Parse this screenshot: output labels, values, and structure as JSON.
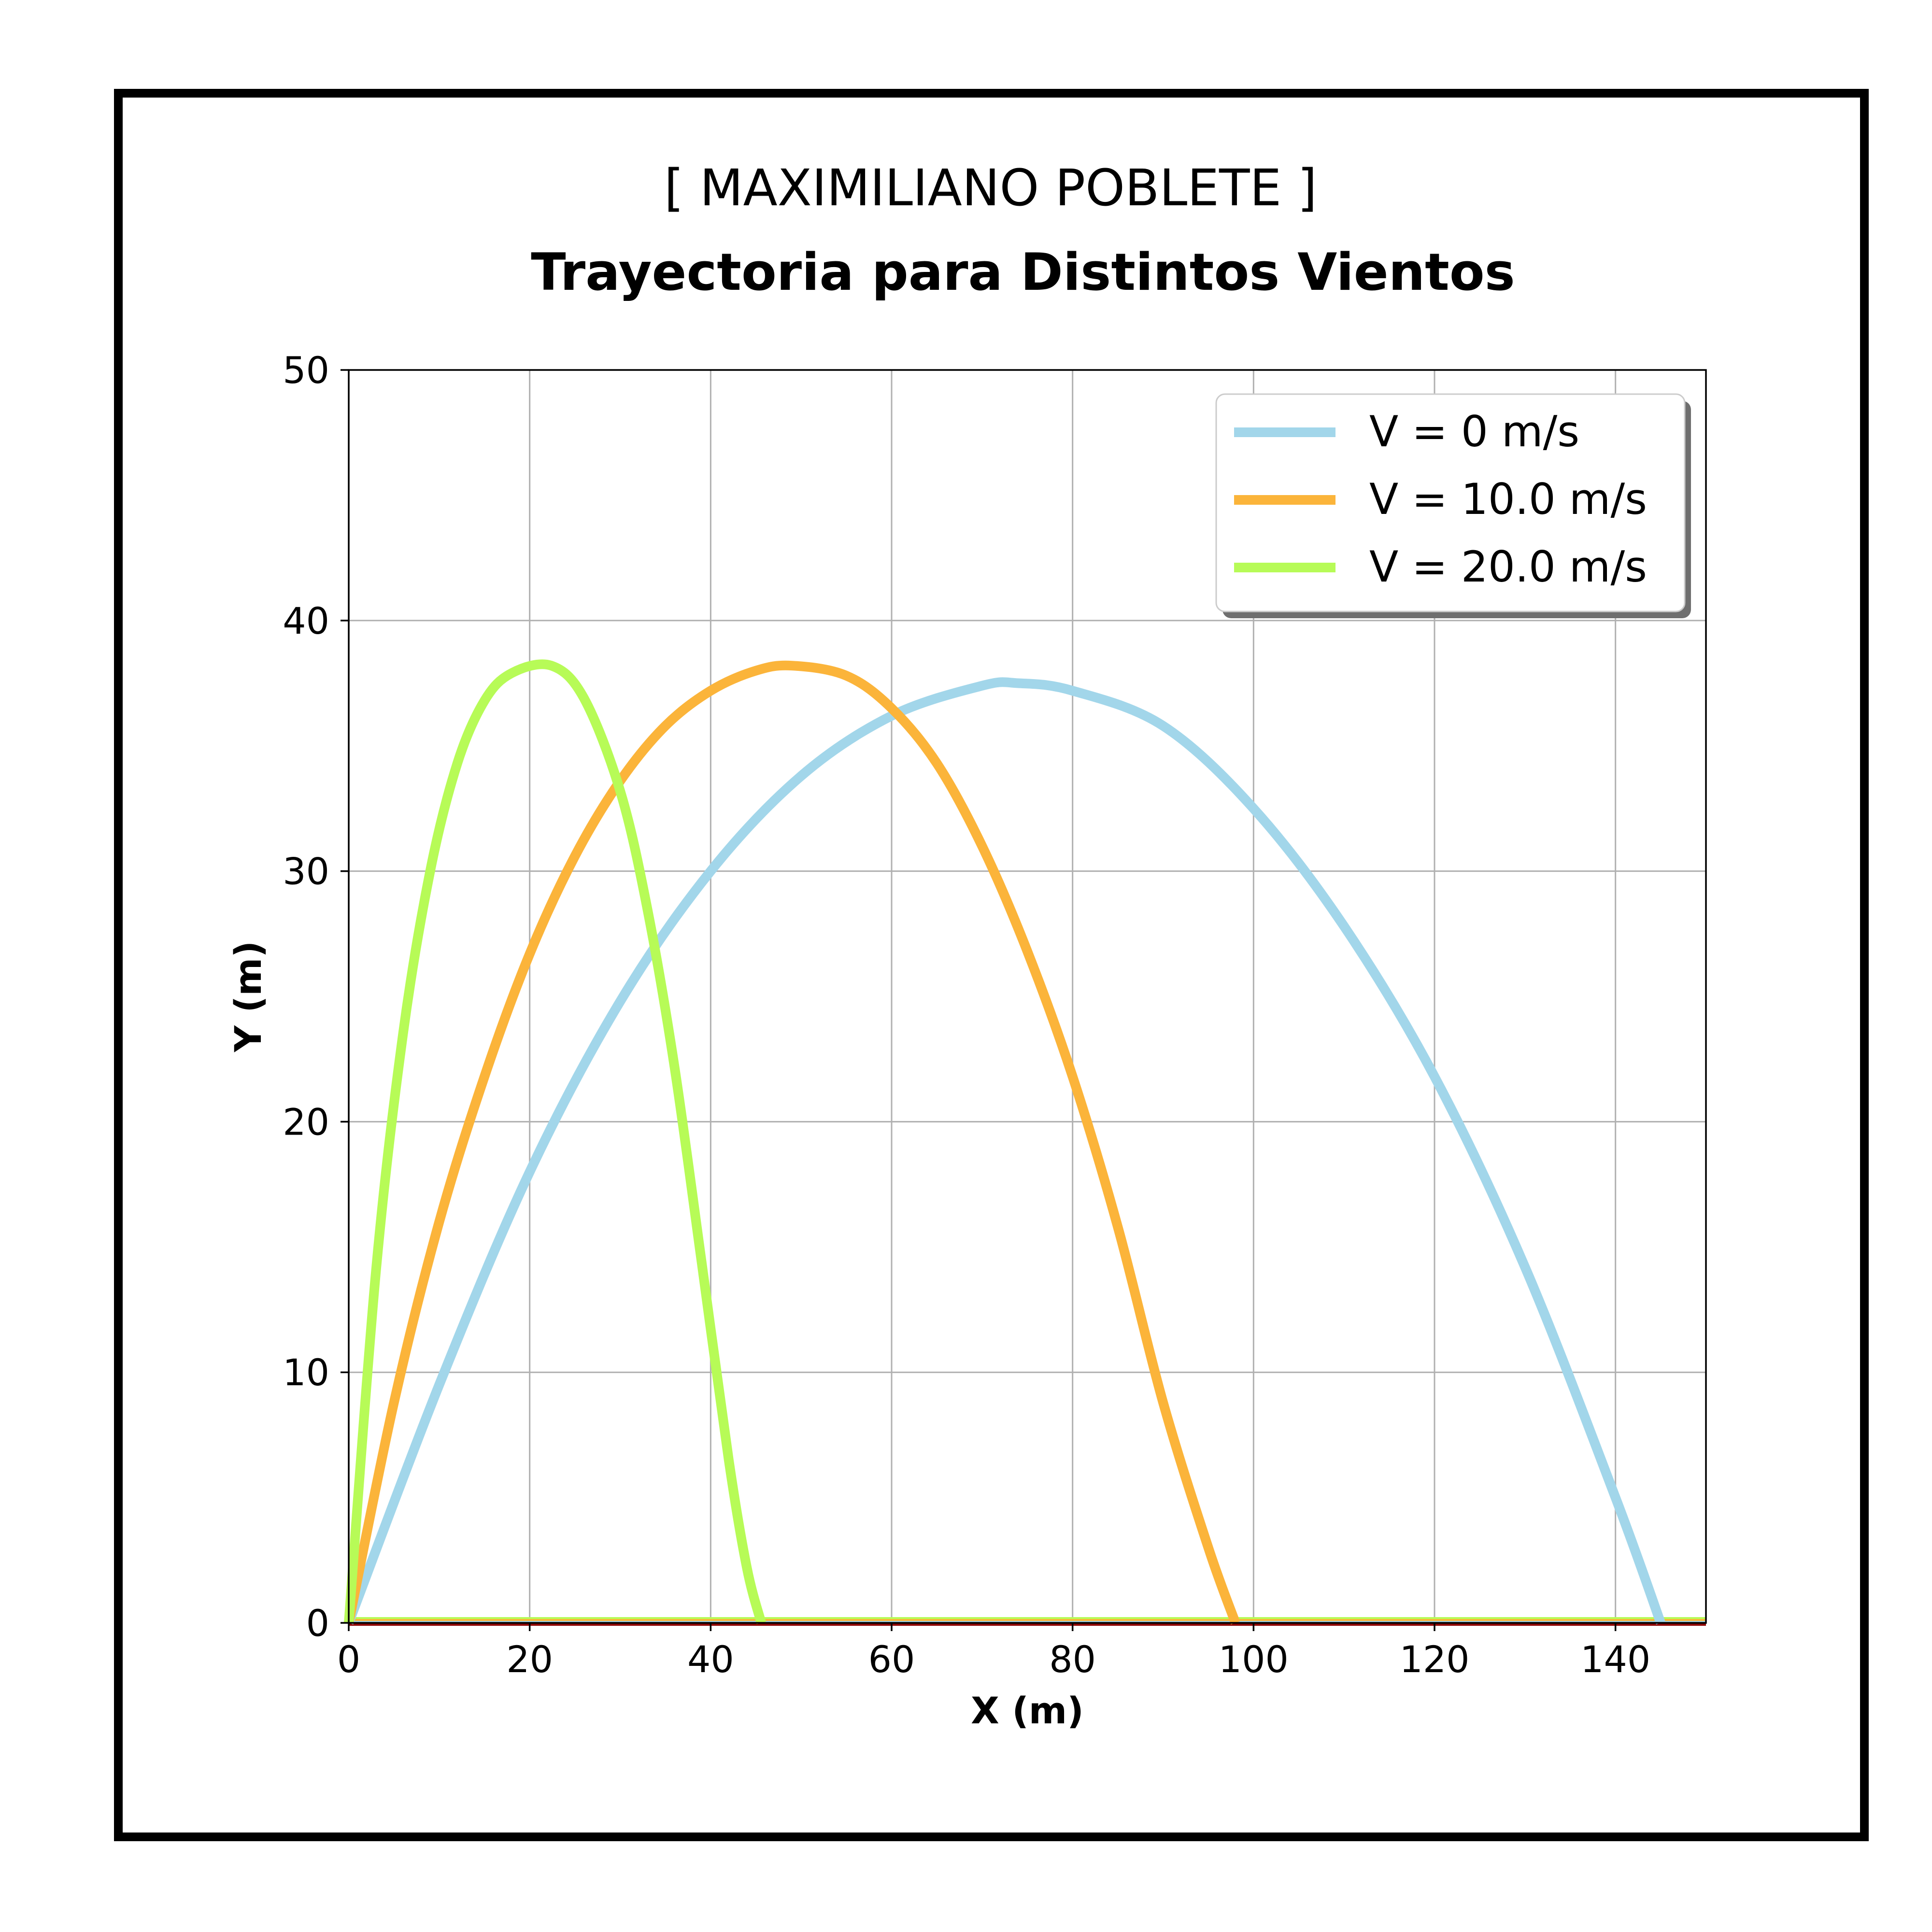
{
  "header": {
    "name": "[ MAXIMILIANO POBLETE ]"
  },
  "chart_data": {
    "type": "line",
    "title": "Trayectoria para Distintos Vientos",
    "xlabel": "X (m)",
    "ylabel": "Y (m)",
    "xlim": [
      0,
      150
    ],
    "ylim": [
      0,
      50
    ],
    "xticks": [
      "0",
      "20",
      "40",
      "60",
      "80",
      "100",
      "120",
      "140"
    ],
    "yticks": [
      "0",
      "10",
      "20",
      "30",
      "40",
      "50"
    ],
    "grid": true,
    "legend_position": "top-right",
    "series": [
      {
        "name": "V = 0 m/s",
        "color": "#a2d6ea",
        "x": [
          0,
          10,
          20,
          30,
          40,
          50,
          60,
          70,
          74,
          80,
          90,
          100,
          110,
          120,
          130,
          140,
          145
        ],
        "y": [
          0,
          9.5,
          18.0,
          24.8,
          30.0,
          33.8,
          36.2,
          37.4,
          37.5,
          37.2,
          35.8,
          32.5,
          27.8,
          21.8,
          14.2,
          5.0,
          0
        ]
      },
      {
        "name": "V = 10.0 m/s",
        "color": "#fbb43a",
        "x": [
          0,
          5,
          10,
          15,
          20,
          25,
          30,
          35,
          40,
          45,
          49,
          55,
          60,
          65,
          70,
          75,
          80,
          85,
          90,
          95,
          98
        ],
        "y": [
          0,
          8.8,
          16.0,
          21.8,
          26.7,
          30.6,
          33.6,
          35.8,
          37.2,
          38.0,
          38.2,
          37.8,
          36.5,
          34.3,
          31.0,
          26.8,
          21.8,
          15.8,
          8.8,
          3.0,
          0
        ]
      },
      {
        "name": "V = 20.0 m/s",
        "color": "#b7fb57",
        "x": [
          0,
          3,
          6,
          9,
          12,
          15,
          18,
          22.4,
          26,
          30,
          33,
          36,
          39,
          42,
          44,
          45.6
        ],
        "y": [
          0,
          14.0,
          23.5,
          30.0,
          34.3,
          36.8,
          37.9,
          38.2,
          36.9,
          33.2,
          28.5,
          22.2,
          14.4,
          6.5,
          2.2,
          0
        ]
      }
    ],
    "baseline": {
      "colors": [
        "#b7fb57",
        "#fbb43a",
        "#a2d6ea",
        "#8b0000"
      ]
    }
  }
}
